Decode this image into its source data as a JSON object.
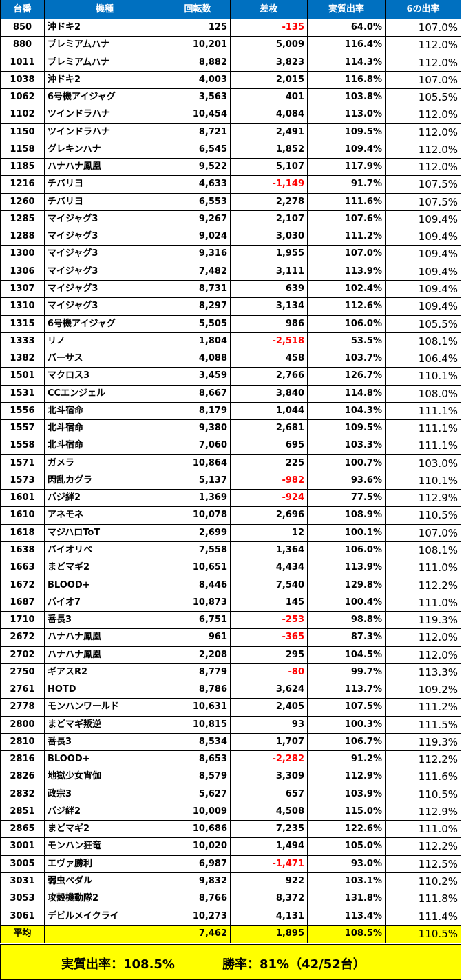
{
  "table": {
    "header": [
      "台番",
      "機種",
      "回転数",
      "差枚",
      "実質出率",
      "6の出率"
    ],
    "rows": [
      [
        "850",
        "沖ドキ2",
        "125",
        "-135",
        "64.0%",
        "107.0%"
      ],
      [
        "880",
        "プレミアムハナ",
        "10,201",
        "5,009",
        "116.4%",
        "112.0%"
      ],
      [
        "1011",
        "プレミアムハナ",
        "8,882",
        "3,823",
        "114.3%",
        "112.0%"
      ],
      [
        "1038",
        "沖ドキ2",
        "4,003",
        "2,015",
        "116.8%",
        "107.0%"
      ],
      [
        "1062",
        "6号機アイジャグ",
        "3,563",
        "401",
        "103.8%",
        "105.5%"
      ],
      [
        "1102",
        "ツインドラハナ",
        "10,454",
        "4,084",
        "113.0%",
        "112.0%"
      ],
      [
        "1150",
        "ツインドラハナ",
        "8,721",
        "2,491",
        "109.5%",
        "112.0%"
      ],
      [
        "1158",
        "グレキンハナ",
        "6,545",
        "1,852",
        "109.4%",
        "112.0%"
      ],
      [
        "1185",
        "ハナハナ鳳凰",
        "9,522",
        "5,107",
        "117.9%",
        "112.0%"
      ],
      [
        "1216",
        "チバリヨ",
        "4,633",
        "-1,149",
        "91.7%",
        "107.5%"
      ],
      [
        "1260",
        "チバリヨ",
        "6,553",
        "2,278",
        "111.6%",
        "107.5%"
      ],
      [
        "1285",
        "マイジャグ3",
        "9,267",
        "2,107",
        "107.6%",
        "109.4%"
      ],
      [
        "1288",
        "マイジャグ3",
        "9,024",
        "3,030",
        "111.2%",
        "109.4%"
      ],
      [
        "1300",
        "マイジャグ3",
        "9,316",
        "1,955",
        "107.0%",
        "109.4%"
      ],
      [
        "1306",
        "マイジャグ3",
        "7,482",
        "3,111",
        "113.9%",
        "109.4%"
      ],
      [
        "1307",
        "マイジャグ3",
        "8,731",
        "639",
        "102.4%",
        "109.4%"
      ],
      [
        "1310",
        "マイジャグ3",
        "8,297",
        "3,134",
        "112.6%",
        "109.4%"
      ],
      [
        "1315",
        "6号機アイジャグ",
        "5,505",
        "986",
        "106.0%",
        "105.5%"
      ],
      [
        "1333",
        "リノ",
        "1,804",
        "-2,518",
        "53.5%",
        "108.1%"
      ],
      [
        "1382",
        "バーサス",
        "4,088",
        "458",
        "103.7%",
        "106.4%"
      ],
      [
        "1501",
        "マクロス3",
        "3,459",
        "2,766",
        "126.7%",
        "110.1%"
      ],
      [
        "1531",
        "CCエンジェル",
        "8,667",
        "3,840",
        "114.8%",
        "108.0%"
      ],
      [
        "1556",
        "北斗宿命",
        "8,179",
        "1,044",
        "104.3%",
        "111.1%"
      ],
      [
        "1557",
        "北斗宿命",
        "9,380",
        "2,681",
        "109.5%",
        "111.1%"
      ],
      [
        "1558",
        "北斗宿命",
        "7,060",
        "695",
        "103.3%",
        "111.1%"
      ],
      [
        "1571",
        "ガメラ",
        "10,864",
        "225",
        "100.7%",
        "103.0%"
      ],
      [
        "1573",
        "閃乱カグラ",
        "5,137",
        "-982",
        "93.6%",
        "110.1%"
      ],
      [
        "1601",
        "バジ絆2",
        "1,369",
        "-924",
        "77.5%",
        "112.9%"
      ],
      [
        "1610",
        "アネモネ",
        "10,078",
        "2,696",
        "108.9%",
        "110.5%"
      ],
      [
        "1618",
        "マジハロToT",
        "2,699",
        "12",
        "100.1%",
        "107.0%"
      ],
      [
        "1638",
        "バイオリベ",
        "7,558",
        "1,364",
        "106.0%",
        "108.1%"
      ],
      [
        "1663",
        "まどマギ2",
        "10,651",
        "4,434",
        "113.9%",
        "111.0%"
      ],
      [
        "1672",
        "BLOOD+",
        "8,446",
        "7,540",
        "129.8%",
        "112.2%"
      ],
      [
        "1687",
        "バイオ7",
        "10,873",
        "145",
        "100.4%",
        "111.0%"
      ],
      [
        "1710",
        "番長3",
        "6,751",
        "-253",
        "98.8%",
        "119.3%"
      ],
      [
        "2672",
        "ハナハナ鳳凰",
        "961",
        "-365",
        "87.3%",
        "112.0%"
      ],
      [
        "2702",
        "ハナハナ鳳凰",
        "2,208",
        "295",
        "104.5%",
        "112.0%"
      ],
      [
        "2750",
        "ギアスR2",
        "8,779",
        "-80",
        "99.7%",
        "113.3%"
      ],
      [
        "2761",
        "HOTD",
        "8,786",
        "3,624",
        "113.7%",
        "109.2%"
      ],
      [
        "2778",
        "モンハンワールド",
        "10,631",
        "2,405",
        "107.5%",
        "111.2%"
      ],
      [
        "2800",
        "まどマギ叛逆",
        "10,815",
        "93",
        "100.3%",
        "111.5%"
      ],
      [
        "2810",
        "番長3",
        "8,534",
        "1,707",
        "106.7%",
        "119.3%"
      ],
      [
        "2816",
        "BLOOD+",
        "8,653",
        "-2,282",
        "91.2%",
        "112.2%"
      ],
      [
        "2826",
        "地獄少女宵伽",
        "8,579",
        "3,309",
        "112.9%",
        "111.6%"
      ],
      [
        "2832",
        "政宗3",
        "5,627",
        "657",
        "103.9%",
        "110.5%"
      ],
      [
        "2851",
        "バジ絆2",
        "10,009",
        "4,508",
        "115.0%",
        "112.9%"
      ],
      [
        "2865",
        "まどマギ2",
        "10,686",
        "7,235",
        "122.6%",
        "111.0%"
      ],
      [
        "3001",
        "モンハン狂竜",
        "10,020",
        "1,494",
        "105.0%",
        "112.2%"
      ],
      [
        "3005",
        "エヴァ勝利",
        "6,987",
        "-1,471",
        "93.0%",
        "112.5%"
      ],
      [
        "3031",
        "弱虫ペダル",
        "9,832",
        "922",
        "103.1%",
        "110.2%"
      ],
      [
        "3053",
        "攻殻機動隊2",
        "8,766",
        "8,372",
        "131.8%",
        "111.8%"
      ],
      [
        "3061",
        "デビルメイクライ",
        "10,273",
        "4,131",
        "113.4%",
        "111.4%"
      ]
    ],
    "average": [
      "平均",
      "",
      "7,462",
      "1,895",
      "108.5%",
      "110.5%"
    ]
  },
  "footer": {
    "rate": "実質出率：108.5%",
    "win": "勝率：81%（42/52台）"
  }
}
